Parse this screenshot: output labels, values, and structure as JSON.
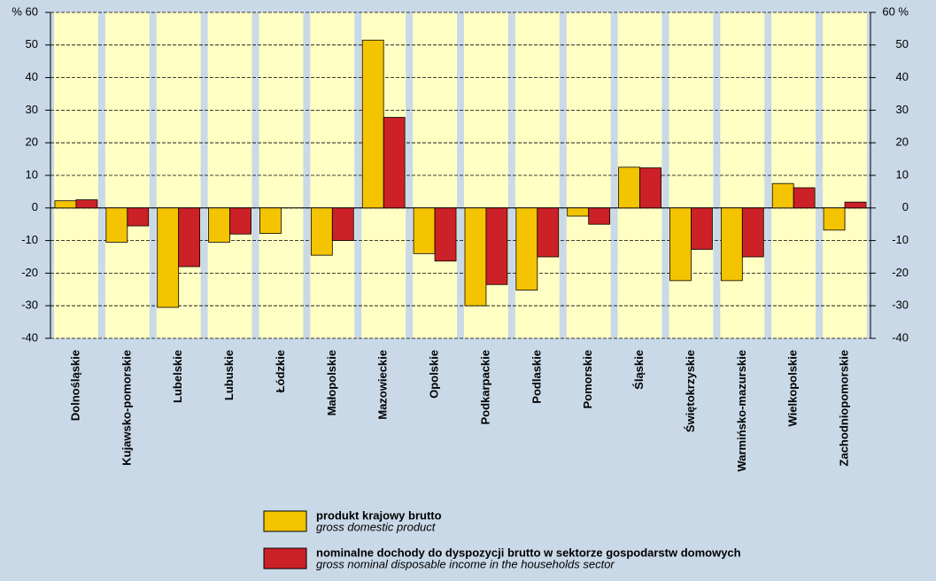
{
  "chart_data": {
    "type": "bar",
    "categories": [
      "Dolnośląskie",
      "Kujawsko-pomorskie",
      "Lubelskie",
      "Lubuskie",
      "Łódzkie",
      "Małopolskie",
      "Mazowieckie",
      "Opolskie",
      "Podkarpackie",
      "Podlaskie",
      "Pomorskie",
      "Śląskie",
      "Świętokrzyskie",
      "Warmińsko-mazurskie",
      "Wielkopolskie",
      "Zachodniopomorskie"
    ],
    "series": [
      {
        "name": "produkt krajowy brutto",
        "subname": "gross domestic product",
        "color": "#f5c400",
        "values": [
          2.2,
          -10.5,
          -30.5,
          -10.5,
          -7.8,
          -14.5,
          51.5,
          -14,
          -30,
          -25.2,
          -2.5,
          12.5,
          -22.3,
          -22.3,
          7.5,
          -6.8
        ]
      },
      {
        "name": "nominalne dochody do dyspozycji brutto w sektorze gospodarstw domowych",
        "subname": "gross nominal disposable income in the households sector",
        "color": "#cc2127",
        "values": [
          2.5,
          -5.5,
          -18,
          -8,
          0,
          -10,
          27.8,
          -16.3,
          -23.5,
          -15,
          -5,
          12.3,
          -12.7,
          -15,
          6.2,
          1.8
        ]
      }
    ],
    "ylim": [
      -40,
      60
    ],
    "yticks": [
      -40,
      -30,
      -20,
      -10,
      0,
      10,
      20,
      30,
      40,
      50,
      {
        "value": 60,
        "label": "% 60"
      }
    ],
    "y2lim": [
      -40,
      60
    ],
    "y2ticks": [
      -40,
      -30,
      -20,
      -10,
      0,
      10,
      20,
      30,
      40,
      50,
      {
        "value": 60,
        "label": "60 %"
      }
    ],
    "grid": true
  }
}
